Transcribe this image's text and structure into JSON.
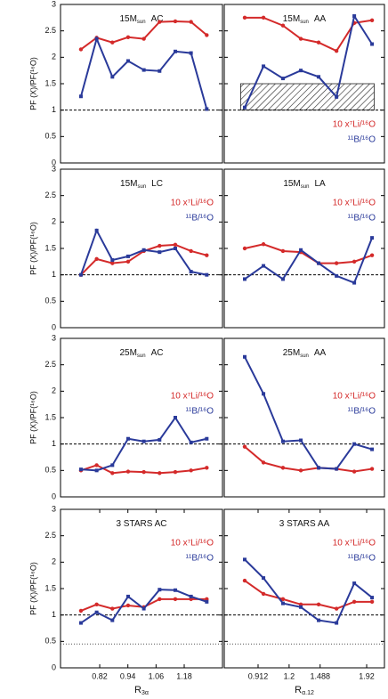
{
  "chart_data": [
    {
      "type": "line",
      "title": [
        "15M",
        "sun",
        "AC"
      ],
      "ylabel": "PF (X)/PF(¹⁶O)",
      "xlim": [
        0.653,
        1.343
      ],
      "ylim": [
        0,
        3
      ],
      "yticks": [
        0,
        0.5,
        1,
        1.5,
        2,
        2.5,
        3
      ],
      "show_ytick_labels": true,
      "dashed_lines": [
        1
      ],
      "x": [
        0.74,
        0.807,
        0.874,
        0.941,
        1.008,
        1.075,
        1.142,
        1.209,
        1.276
      ],
      "series": [
        {
          "name": "10 x⁷Li/¹⁶O",
          "color": "#d42a2a",
          "marker": "circle",
          "values": [
            2.15,
            2.37,
            2.28,
            2.38,
            2.35,
            2.67,
            2.68,
            2.67,
            2.42
          ]
        },
        {
          "name": "¹¹B/¹⁶O",
          "color": "#2a3a9a",
          "marker": "square",
          "values": [
            1.26,
            2.35,
            1.63,
            1.93,
            1.76,
            1.74,
            2.11,
            2.08,
            1.02
          ]
        }
      ]
    },
    {
      "type": "line",
      "title": [
        "15M",
        "sun",
        "AA"
      ],
      "xlim": [
        0.598,
        2.085
      ],
      "ylim": [
        0,
        3
      ],
      "yticks": [
        0,
        0.5,
        1,
        1.5,
        2,
        2.5,
        3
      ],
      "show_ytick_labels": false,
      "dashed_lines": [
        1
      ],
      "legend": "lower right",
      "band": {
        "x": [
          0.75,
          1.99
        ],
        "y": [
          1,
          1.5
        ]
      },
      "x": [
        0.788,
        0.962,
        1.143,
        1.309,
        1.474,
        1.64,
        1.805,
        1.97
      ],
      "series": [
        {
          "name": "10 x⁷Li/¹⁶O",
          "color": "#d42a2a",
          "marker": "circle",
          "values": [
            2.75,
            2.75,
            2.6,
            2.35,
            2.28,
            2.12,
            2.65,
            2.7
          ]
        },
        {
          "name": "¹¹B/¹⁶O",
          "color": "#2a3a9a",
          "marker": "square",
          "values": [
            1.05,
            1.83,
            1.6,
            1.75,
            1.63,
            1.25,
            2.78,
            2.25
          ]
        }
      ]
    },
    {
      "type": "line",
      "title": [
        "15M",
        "sun",
        "LC"
      ],
      "ylabel": "PF (X)/PF(¹⁶O)",
      "xlim": [
        0.653,
        1.343
      ],
      "ylim": [
        0,
        3
      ],
      "yticks": [
        0,
        0.5,
        1,
        1.5,
        2,
        2.5,
        3
      ],
      "show_ytick_labels": true,
      "dashed_lines": [
        1
      ],
      "legend": "upper right",
      "x": [
        0.74,
        0.807,
        0.874,
        0.941,
        1.008,
        1.075,
        1.142,
        1.209,
        1.276
      ],
      "series": [
        {
          "name": "10 x⁷Li/¹⁶O",
          "color": "#d42a2a",
          "marker": "circle",
          "values": [
            1.0,
            1.3,
            1.22,
            1.25,
            1.45,
            1.55,
            1.57,
            1.45,
            1.37
          ]
        },
        {
          "name": "¹¹B/¹⁶O",
          "color": "#2a3a9a",
          "marker": "square",
          "values": [
            1.0,
            1.84,
            1.28,
            1.35,
            1.47,
            1.43,
            1.5,
            1.06,
            1.0
          ]
        }
      ]
    },
    {
      "type": "line",
      "title": [
        "15M",
        "sun",
        "LA"
      ],
      "xlim": [
        0.598,
        2.085
      ],
      "ylim": [
        0,
        3
      ],
      "yticks": [
        0,
        0.5,
        1,
        1.5,
        2,
        2.5,
        3
      ],
      "show_ytick_labels": false,
      "dashed_lines": [
        1
      ],
      "legend": "upper right",
      "x": [
        0.788,
        0.962,
        1.143,
        1.309,
        1.474,
        1.64,
        1.805,
        1.97
      ],
      "series": [
        {
          "name": "10 x⁷Li/¹⁶O",
          "color": "#d42a2a",
          "marker": "circle",
          "values": [
            1.5,
            1.58,
            1.45,
            1.43,
            1.22,
            1.22,
            1.25,
            1.37
          ]
        },
        {
          "name": "¹¹B/¹⁶O",
          "color": "#2a3a9a",
          "marker": "square",
          "values": [
            0.92,
            1.17,
            0.92,
            1.47,
            1.22,
            0.98,
            0.85,
            1.7
          ]
        }
      ]
    },
    {
      "type": "line",
      "title": [
        "25M",
        "sun",
        "AC"
      ],
      "ylabel": "PF (X)/PF(¹⁶O)",
      "xlim": [
        0.653,
        1.343
      ],
      "ylim": [
        0,
        3
      ],
      "yticks": [
        0,
        0.5,
        1,
        1.5,
        2,
        2.5,
        3
      ],
      "show_ytick_labels": true,
      "dashed_lines": [
        1
      ],
      "legend": "center right",
      "x": [
        0.74,
        0.807,
        0.874,
        0.941,
        1.008,
        1.075,
        1.142,
        1.209,
        1.276
      ],
      "series": [
        {
          "name": "10 x⁷Li/¹⁶O",
          "color": "#d42a2a",
          "marker": "circle",
          "values": [
            0.5,
            0.6,
            0.45,
            0.48,
            0.47,
            0.45,
            0.47,
            0.5,
            0.55
          ]
        },
        {
          "name": "¹¹B/¹⁶O",
          "color": "#2a3a9a",
          "marker": "square",
          "values": [
            0.52,
            0.5,
            0.6,
            1.1,
            1.05,
            1.08,
            1.5,
            1.03,
            1.1
          ]
        }
      ]
    },
    {
      "type": "line",
      "title": [
        "25M",
        "sun",
        "AA"
      ],
      "xlim": [
        0.598,
        2.085
      ],
      "ylim": [
        0,
        3
      ],
      "yticks": [
        0,
        0.5,
        1,
        1.5,
        2,
        2.5,
        3
      ],
      "show_ytick_labels": false,
      "dashed_lines": [
        1
      ],
      "legend": "center right",
      "x": [
        0.788,
        0.962,
        1.143,
        1.309,
        1.474,
        1.64,
        1.805,
        1.97
      ],
      "series": [
        {
          "name": "10 x⁷Li/¹⁶O",
          "color": "#d42a2a",
          "marker": "circle",
          "values": [
            0.95,
            0.65,
            0.55,
            0.5,
            0.55,
            0.53,
            0.48,
            0.53
          ]
        },
        {
          "name": "¹¹B/¹⁶O",
          "color": "#2a3a9a",
          "marker": "square",
          "values": [
            2.65,
            1.95,
            1.05,
            1.07,
            0.55,
            0.53,
            1.0,
            0.9
          ]
        }
      ]
    },
    {
      "type": "line",
      "title": [
        "3 STARS AC"
      ],
      "ylabel": "PF (X)/PF(¹⁶O)",
      "xlabel": [
        "R",
        "3α"
      ],
      "xlim": [
        0.653,
        1.343
      ],
      "xticks": [
        0.82,
        0.94,
        1.06,
        1.18
      ],
      "ylim": [
        0,
        3
      ],
      "yticks": [
        0,
        0.5,
        1,
        1.5,
        2,
        2.5,
        3
      ],
      "show_ytick_labels": true,
      "dashed_lines": [
        1
      ],
      "dotted_lines": [
        0.45
      ],
      "legend": "upper right",
      "x": [
        0.74,
        0.807,
        0.874,
        0.941,
        1.008,
        1.075,
        1.142,
        1.209,
        1.276
      ],
      "series": [
        {
          "name": "10 x⁷Li/¹⁶O",
          "color": "#d42a2a",
          "marker": "circle",
          "values": [
            1.08,
            1.2,
            1.12,
            1.18,
            1.15,
            1.3,
            1.3,
            1.3,
            1.3
          ]
        },
        {
          "name": "¹¹B/¹⁶O",
          "color": "#2a3a9a",
          "marker": "square",
          "values": [
            0.85,
            1.05,
            0.9,
            1.35,
            1.12,
            1.48,
            1.47,
            1.35,
            1.25
          ]
        }
      ]
    },
    {
      "type": "line",
      "title": [
        "3 STARS AA"
      ],
      "xlabel": [
        "R",
        "α,12"
      ],
      "xlim": [
        0.598,
        2.085
      ],
      "xticks": [
        0.912,
        1.2,
        1.488,
        1.92
      ],
      "ylim": [
        0,
        3
      ],
      "yticks": [
        0,
        0.5,
        1,
        1.5,
        2,
        2.5,
        3
      ],
      "show_ytick_labels": false,
      "dashed_lines": [
        1
      ],
      "dotted_lines": [
        0.45
      ],
      "legend": "upper right",
      "x": [
        0.788,
        0.962,
        1.143,
        1.309,
        1.474,
        1.64,
        1.805,
        1.97
      ],
      "series": [
        {
          "name": "10 x⁷Li/¹⁶O",
          "color": "#d42a2a",
          "marker": "circle",
          "values": [
            1.65,
            1.4,
            1.3,
            1.2,
            1.2,
            1.12,
            1.25,
            1.25
          ]
        },
        {
          "name": "¹¹B/¹⁶O",
          "color": "#2a3a9a",
          "marker": "square",
          "values": [
            2.05,
            1.7,
            1.22,
            1.15,
            0.9,
            0.85,
            1.6,
            1.33
          ]
        }
      ]
    }
  ]
}
